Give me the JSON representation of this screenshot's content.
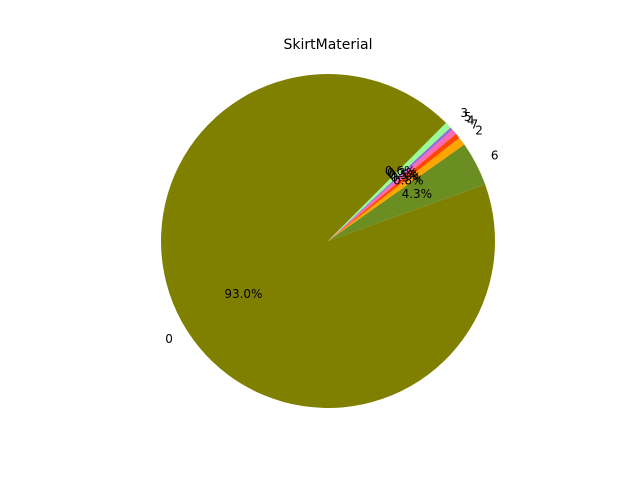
{
  "chart_data": {
    "type": "pie",
    "title": "SkirtMaterial",
    "categories": [
      "0",
      "6",
      "2",
      "7",
      "4",
      "5",
      "3"
    ],
    "values": [
      93.0,
      4.3,
      0.8,
      0.5,
      0.5,
      0.3,
      0.6
    ],
    "percent_labels": [
      "93.0%",
      "4.3%",
      "0.8%",
      "0.5%",
      "0.5%",
      "0.3%",
      "0.6%"
    ],
    "colors": [
      "#808000",
      "#6b8e23",
      "#ffa500",
      "#ff4500",
      "#ff69b4",
      "#9370db",
      "#98fb98"
    ],
    "start_angle_deg": 45,
    "direction": "counterclockwise",
    "legend": "none",
    "grid": false
  }
}
